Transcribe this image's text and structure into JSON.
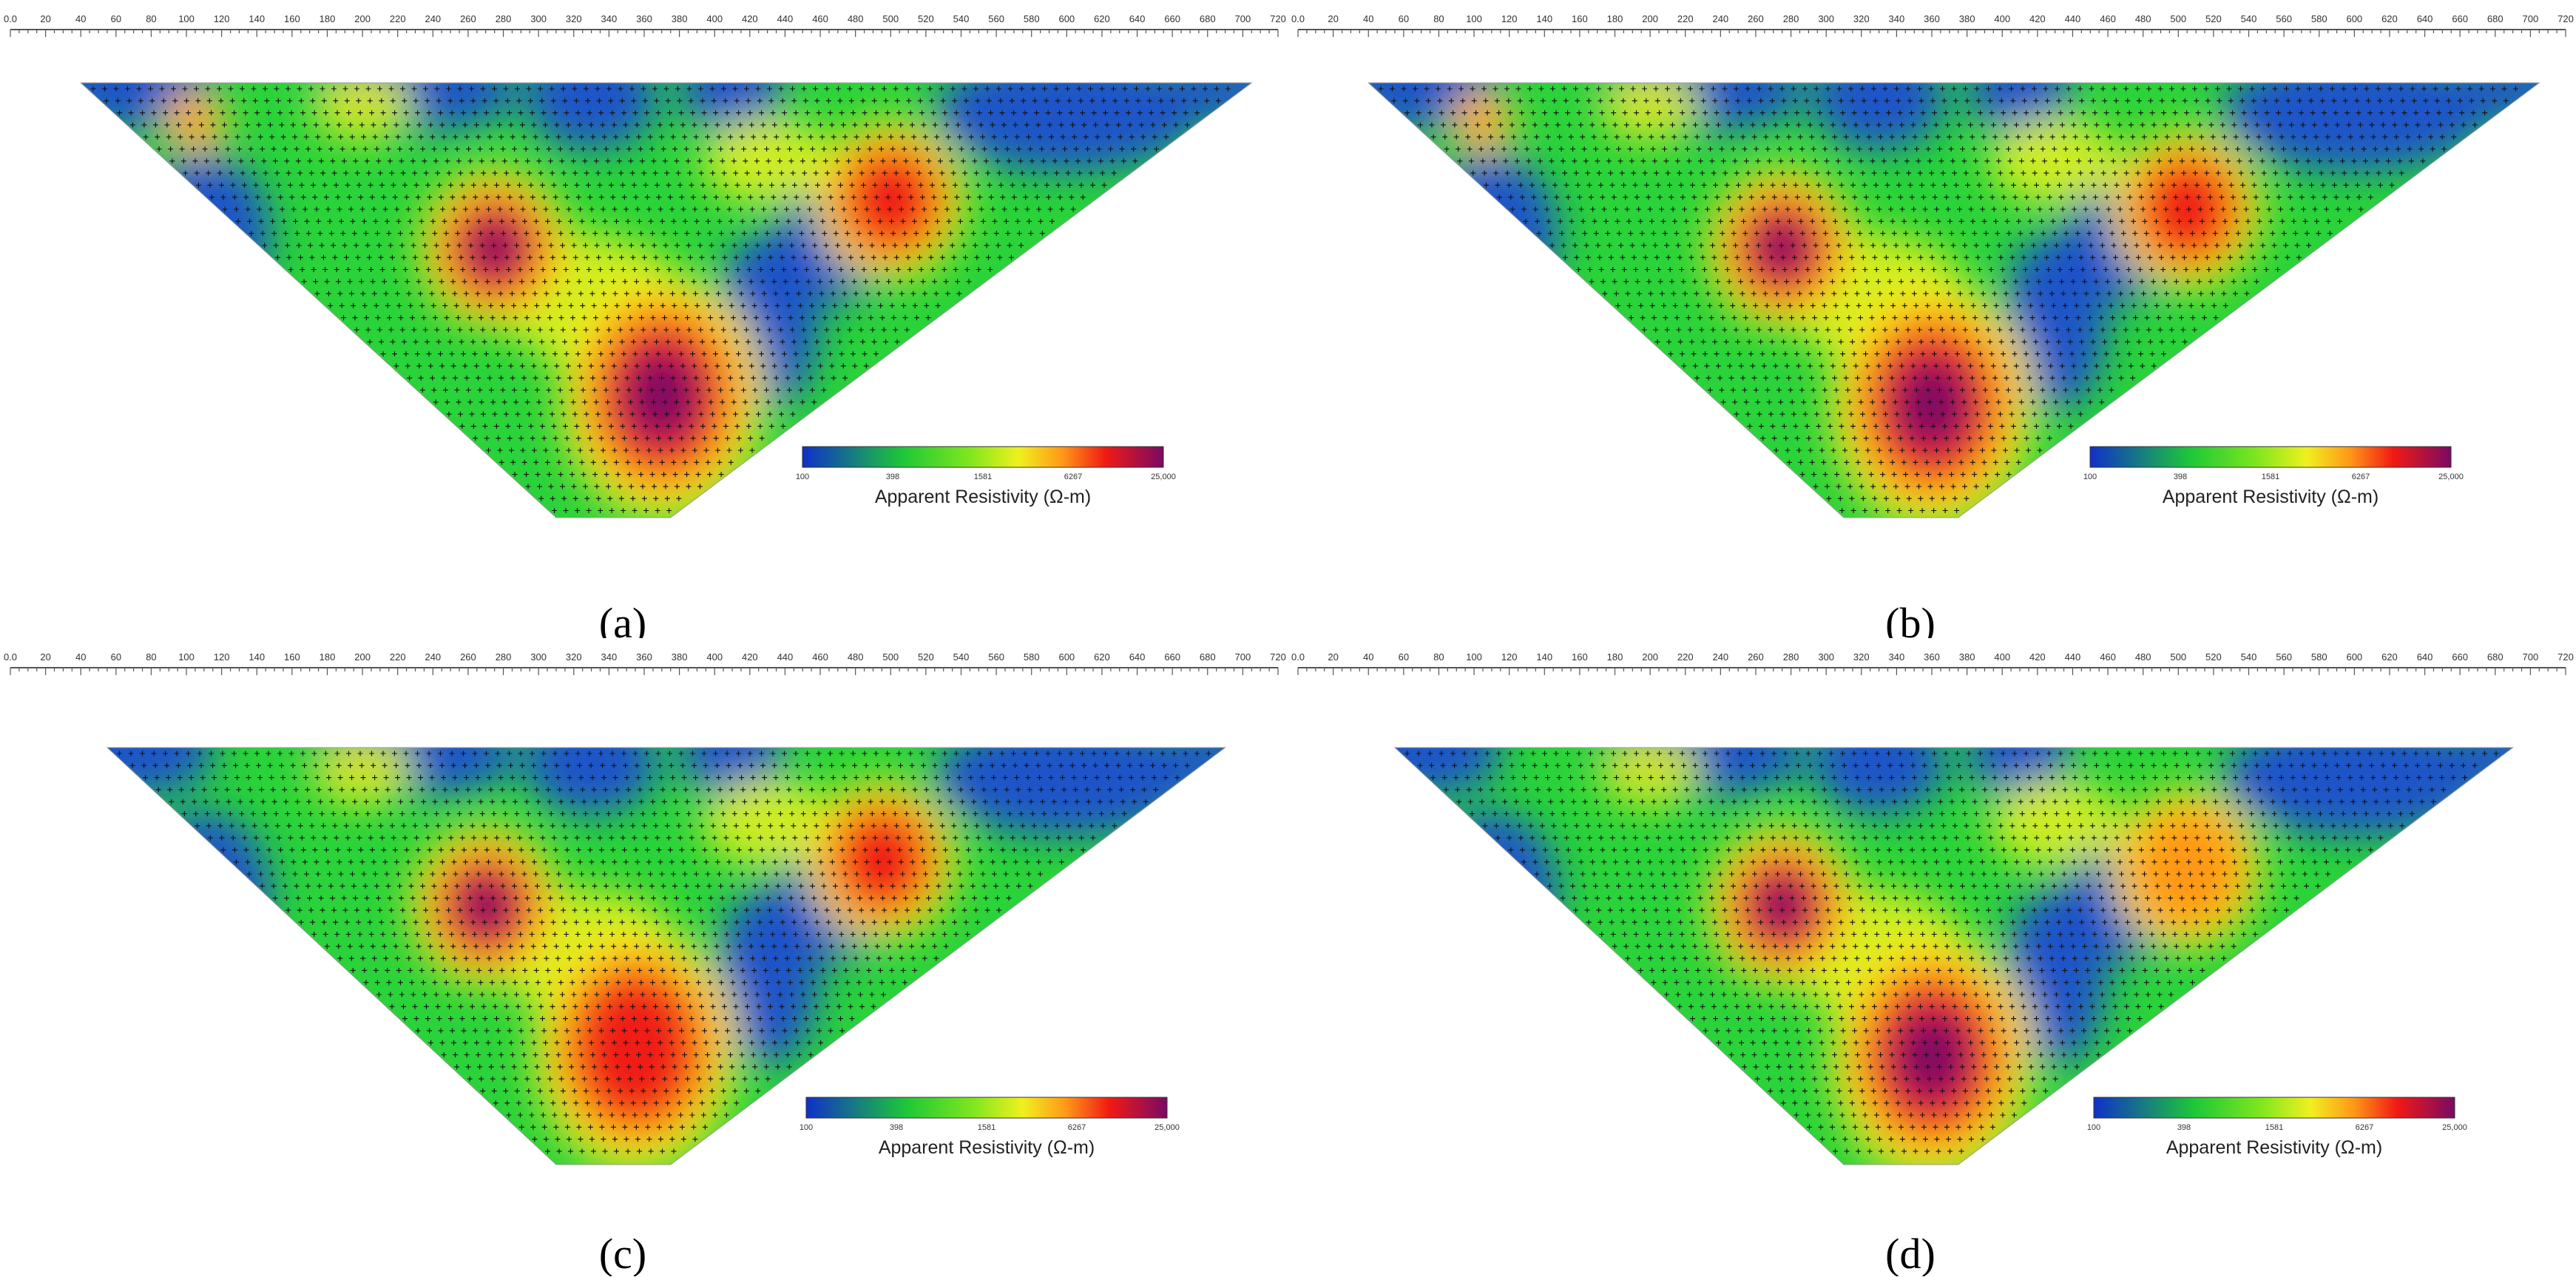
{
  "chart_data": [
    {
      "type": "heatmap",
      "panel_label": "(a)",
      "x_ticks": [
        "0.0",
        "20",
        "40",
        "60",
        "80",
        "100",
        "120",
        "140",
        "160",
        "180",
        "200",
        "220",
        "240",
        "260",
        "280",
        "300",
        "320",
        "340",
        "360",
        "380",
        "400",
        "420",
        "440",
        "460",
        "480",
        "500",
        "520",
        "540",
        "560",
        "580",
        "600",
        "620",
        "640",
        "660",
        "680",
        "700",
        "720"
      ],
      "xlim": [
        0,
        720
      ],
      "section_x_range": [
        40,
        705
      ],
      "colorbar": {
        "title": "Apparent Resistivity (Ω-m)",
        "ticks": [
          "100",
          "398",
          "1581",
          "6267",
          "25,000"
        ]
      },
      "anomalies": [
        {
          "x": 275,
          "level": 25000
        },
        {
          "x": 370,
          "level": 25000
        },
        {
          "x": 500,
          "level": 12000
        },
        {
          "x": 105,
          "level": 5000
        }
      ]
    },
    {
      "type": "heatmap",
      "panel_label": "(b)",
      "x_ticks": [
        "0.0",
        "20",
        "40",
        "60",
        "80",
        "100",
        "120",
        "140",
        "160",
        "180",
        "200",
        "220",
        "240",
        "260",
        "280",
        "300",
        "320",
        "340",
        "360",
        "380",
        "400",
        "420",
        "440",
        "460",
        "480",
        "500",
        "520",
        "540",
        "560",
        "580",
        "600",
        "620",
        "640",
        "660",
        "680",
        "700",
        "720"
      ],
      "xlim": [
        0,
        720
      ],
      "section_x_range": [
        40,
        705
      ],
      "colorbar": {
        "title": "Apparent Resistivity (Ω-m)",
        "ticks": [
          "100",
          "398",
          "1581",
          "6267",
          "25,000"
        ]
      },
      "anomalies": [
        {
          "x": 275,
          "level": 25000
        },
        {
          "x": 360,
          "level": 25000
        },
        {
          "x": 505,
          "level": 12000
        },
        {
          "x": 105,
          "level": 5000
        }
      ]
    },
    {
      "type": "heatmap",
      "panel_label": "(c)",
      "x_ticks": [
        "0.0",
        "20",
        "40",
        "60",
        "80",
        "100",
        "120",
        "140",
        "160",
        "180",
        "200",
        "220",
        "240",
        "260",
        "280",
        "300",
        "320",
        "340",
        "360",
        "380",
        "400",
        "420",
        "440",
        "460",
        "480",
        "500",
        "520",
        "540",
        "560",
        "580",
        "600",
        "620",
        "640",
        "660",
        "680",
        "700",
        "720"
      ],
      "xlim": [
        0,
        720
      ],
      "section_x_range": [
        55,
        690
      ],
      "colorbar": {
        "title": "Apparent Resistivity (Ω-m)",
        "ticks": [
          "100",
          "398",
          "1581",
          "6267",
          "25,000"
        ]
      },
      "anomalies": [
        {
          "x": 270,
          "level": 25000
        },
        {
          "x": 355,
          "level": 12000
        },
        {
          "x": 495,
          "level": 6267
        }
      ]
    },
    {
      "type": "heatmap",
      "panel_label": "(d)",
      "x_ticks": [
        "0.0",
        "20",
        "40",
        "60",
        "80",
        "100",
        "120",
        "140",
        "160",
        "180",
        "200",
        "220",
        "240",
        "260",
        "280",
        "300",
        "320",
        "340",
        "360",
        "380",
        "400",
        "420",
        "440",
        "460",
        "480",
        "500",
        "520",
        "540",
        "560",
        "580",
        "600",
        "620",
        "640",
        "660",
        "680",
        "700",
        "720"
      ],
      "xlim": [
        0,
        720
      ],
      "section_x_range": [
        55,
        690
      ],
      "colorbar": {
        "title": "Apparent Resistivity (Ω-m)",
        "ticks": [
          "100",
          "398",
          "1581",
          "6267",
          "25,000"
        ]
      },
      "anomalies": [
        {
          "x": 275,
          "level": 25000
        },
        {
          "x": 360,
          "level": 25000
        },
        {
          "x": 505,
          "level": 5000
        }
      ]
    }
  ]
}
